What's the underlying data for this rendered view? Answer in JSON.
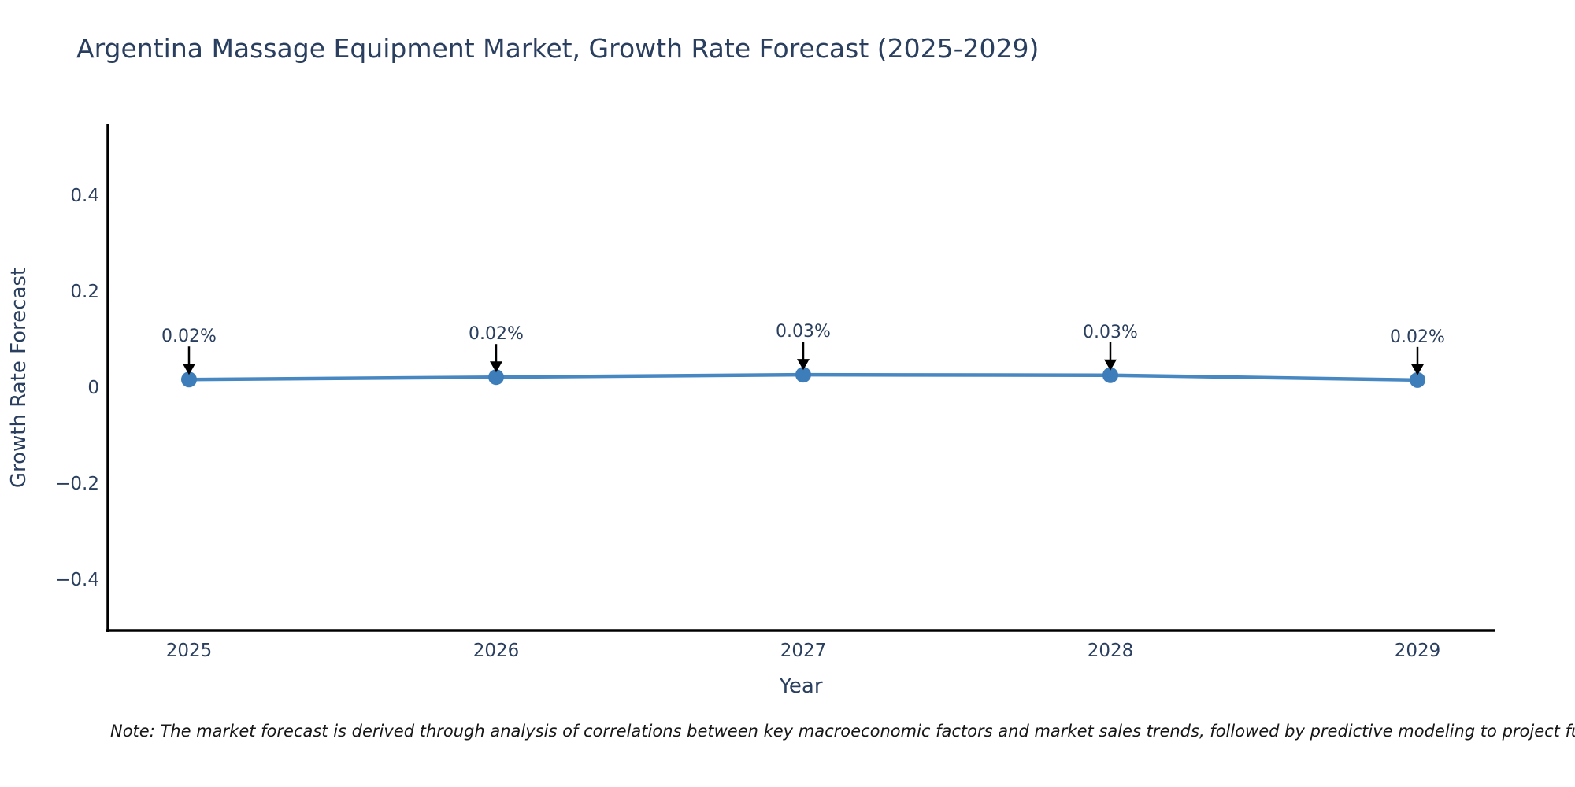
{
  "chart_data": {
    "type": "line",
    "title": "Argentina Massage Equipment Market, Growth Rate Forecast (2025-2029)",
    "xlabel": "Year",
    "ylabel": "Growth Rate Forecast",
    "x": [
      2025,
      2026,
      2027,
      2028,
      2029
    ],
    "series": [
      {
        "name": "Growth Rate Forecast",
        "values": [
          0.016,
          0.021,
          0.026,
          0.025,
          0.015
        ]
      }
    ],
    "point_labels": [
      "0.02%",
      "0.02%",
      "0.03%",
      "0.03%",
      "0.02%"
    ],
    "xticks": [
      "2025",
      "2026",
      "2027",
      "2028",
      "2029"
    ],
    "yticks": {
      "values": [
        0.4,
        0.2,
        0,
        -0.2,
        -0.4
      ],
      "labels": [
        "0.4",
        "0.2",
        "0",
        "−0.2",
        "−0.4"
      ]
    },
    "ylim": [
      -0.5,
      0.55
    ],
    "grid": false,
    "legend": "none",
    "colors": {
      "line": "#4787c2",
      "marker": "#3d7dba",
      "annotation_arrow": "#000000",
      "axis_line": "#000000",
      "text": "#2a3f5f",
      "background": "#ffffff"
    }
  },
  "footnote": "Note: The market forecast is derived through analysis of correlations between key macroeconomic factors and market sales trends, followed by predictive modeling to project future sales"
}
